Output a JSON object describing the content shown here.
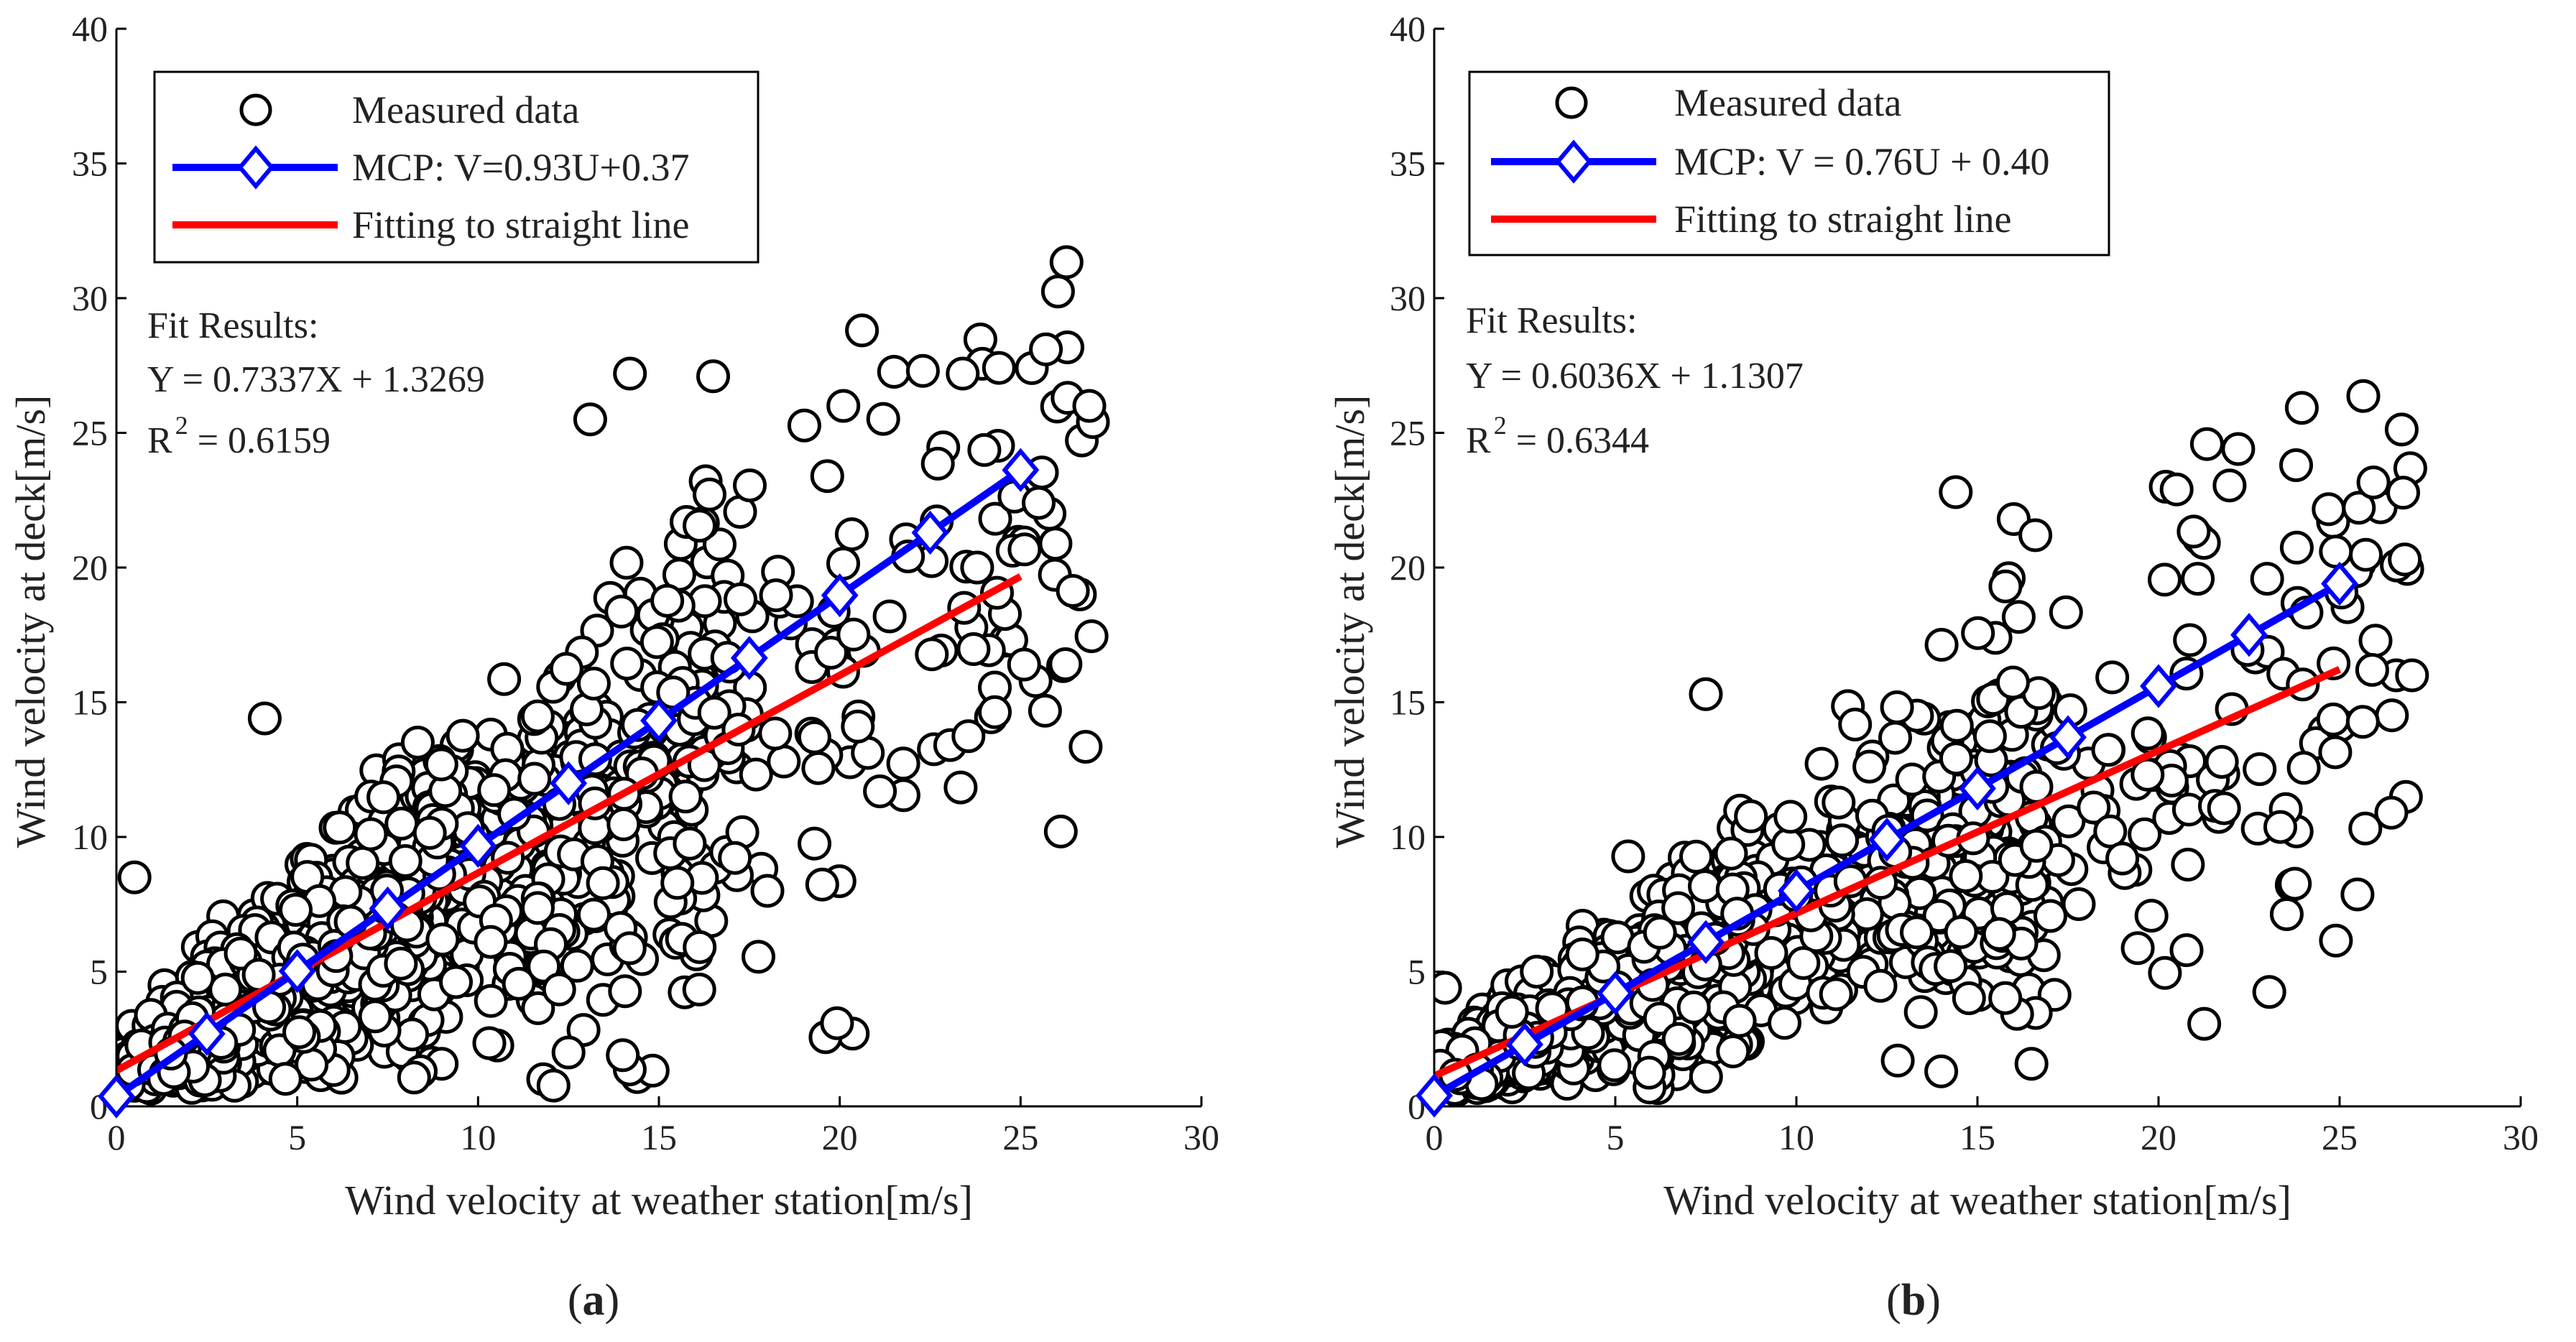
{
  "colors": {
    "measured": "#000000",
    "mcp": "#0000ff",
    "fit": "#ff0000"
  },
  "chart_data": [
    {
      "type": "scatter",
      "panel_label": {
        "open": "(",
        "letter": "a",
        "close": ")"
      },
      "xlabel": "Wind velocity at weather station[m/s]",
      "ylabel": "Wind velocity at deck[m/s]",
      "xlim": [
        0,
        30
      ],
      "ylim": [
        0,
        40
      ],
      "xticks": [
        0,
        5,
        10,
        15,
        20,
        25,
        30
      ],
      "yticks": [
        0,
        5,
        10,
        15,
        20,
        25,
        30,
        35,
        40
      ],
      "legend": {
        "position": "top-left",
        "entries": [
          "Measured data",
          "MCP: V=0.93U+0.37",
          "Fitting to straight line"
        ]
      },
      "fit_results": {
        "title": "Fit Results:",
        "equation": "Y = 0.7337X + 1.3269",
        "r2_lhs": "R",
        "r2_sup": "2",
        "r2_rhs": " = 0.6159"
      },
      "series": [
        {
          "name": "Measured data",
          "kind": "markers",
          "gen": {
            "count": 1400,
            "maxx": 27.0,
            "slope": 0.7337,
            "intercept": 1.3269,
            "noise": 0.34,
            "seed": 11
          },
          "extra_points": [
            [
              14.2,
              27.2
            ],
            [
              16.5,
              27.1
            ],
            [
              25.7,
              28.1
            ],
            [
              23.4,
              27.2
            ],
            [
              22.3,
              27.3
            ],
            [
              26.3,
              26.3
            ],
            [
              27.0,
              25.4
            ],
            [
              26.9,
              26.0
            ],
            [
              20.1,
              26.0
            ],
            [
              13.1,
              25.5
            ],
            [
              4.1,
              14.4
            ],
            [
              20.5,
              14.1
            ],
            [
              19.3,
              13.7
            ],
            [
              18.0,
              8.0
            ],
            [
              0.5,
              8.5
            ],
            [
              14.0,
              1.9
            ],
            [
              12.5,
              2.0
            ],
            [
              25.8,
              22.0
            ],
            [
              25.5,
              22.4
            ],
            [
              23.8,
              20.0
            ]
          ]
        },
        {
          "name": "MCP: V=0.93U+0.37",
          "kind": "line-diamond",
          "slope": 0.93,
          "intercept": 0.37,
          "x": [
            0,
            2.5,
            5,
            7.5,
            10,
            12.5,
            15,
            17.5,
            20,
            22.5,
            25
          ]
        },
        {
          "name": "Fitting to straight line",
          "kind": "line",
          "slope": 0.7337,
          "intercept": 1.3269,
          "x": [
            0,
            25
          ]
        }
      ]
    },
    {
      "type": "scatter",
      "panel_label": {
        "open": "(",
        "letter": "b",
        "close": ")"
      },
      "xlabel": "Wind velocity at weather station[m/s]",
      "ylabel": "Wind velocity at deck[m/s]",
      "xlim": [
        0,
        30
      ],
      "ylim": [
        0,
        40
      ],
      "xticks": [
        0,
        5,
        10,
        15,
        20,
        25,
        30
      ],
      "yticks": [
        0,
        5,
        10,
        15,
        20,
        25,
        30,
        35,
        40
      ],
      "legend": {
        "position": "top-left",
        "entries": [
          "Measured data",
          "MCP: V = 0.76U + 0.40",
          "Fitting to straight line"
        ]
      },
      "fit_results": {
        "title": "Fit Results:",
        "equation": "Y = 0.6036X + 1.1307",
        "r2_lhs": "R",
        "r2_sup": "2",
        "r2_rhs": " = 0.6344"
      },
      "series": [
        {
          "name": "Measured data",
          "kind": "markers",
          "gen": {
            "count": 1400,
            "maxx": 27.0,
            "slope": 0.6036,
            "intercept": 1.1307,
            "noise": 0.32,
            "seed": 29
          },
          "extra_points": [
            [
              22.2,
              24.4
            ],
            [
              23.8,
              23.8
            ],
            [
              20.2,
              23.0
            ],
            [
              20.5,
              22.9
            ],
            [
              14.4,
              22.8
            ],
            [
              16.0,
              21.8
            ],
            [
              16.6,
              21.2
            ],
            [
              26.8,
              20.3
            ],
            [
              27.0,
              16.0
            ],
            [
              25.9,
              16.2
            ],
            [
              19.0,
              9.2
            ],
            [
              15.6,
              6.4
            ],
            [
              14.0,
              1.3
            ],
            [
              12.8,
              1.7
            ],
            [
              0.3,
              4.4
            ],
            [
              7.5,
              15.3
            ]
          ]
        },
        {
          "name": "MCP: V = 0.76U + 0.40",
          "kind": "line-diamond",
          "slope": 0.76,
          "intercept": 0.4,
          "x": [
            0,
            2.5,
            5,
            7.5,
            10,
            12.5,
            15,
            17.5,
            20,
            22.5,
            25
          ]
        },
        {
          "name": "Fitting to straight line",
          "kind": "line",
          "slope": 0.6036,
          "intercept": 1.1307,
          "x": [
            0,
            25
          ]
        }
      ]
    }
  ]
}
